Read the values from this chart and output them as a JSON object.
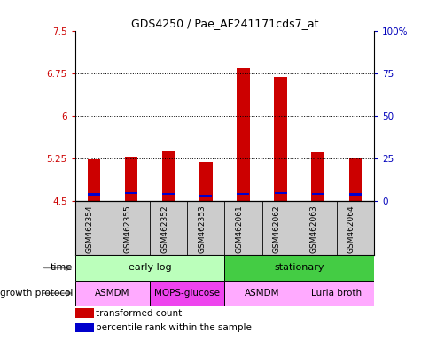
{
  "title": "GDS4250 / Pae_AF241171cds7_at",
  "samples": [
    "GSM462354",
    "GSM462355",
    "GSM462352",
    "GSM462353",
    "GSM462061",
    "GSM462062",
    "GSM462063",
    "GSM462064"
  ],
  "red_values": [
    5.22,
    5.28,
    5.38,
    5.18,
    6.84,
    6.68,
    5.36,
    5.26
  ],
  "blue_values": [
    4.61,
    4.63,
    4.62,
    4.59,
    4.62,
    4.63,
    4.62,
    4.61
  ],
  "bar_bottom": 4.5,
  "ylim_left": [
    4.5,
    7.5
  ],
  "ylim_right": [
    0,
    100
  ],
  "yticks_left": [
    4.5,
    5.25,
    6.0,
    6.75,
    7.5
  ],
  "yticks_right": [
    0,
    25,
    50,
    75,
    100
  ],
  "ytick_labels_left": [
    "4.5",
    "5.25",
    "6",
    "6.75",
    "7.5"
  ],
  "ytick_labels_right": [
    "0",
    "25",
    "50",
    "75",
    "100%"
  ],
  "hlines": [
    5.25,
    6.0,
    6.75
  ],
  "time_groups": [
    {
      "label": "early log",
      "start": 0,
      "end": 4,
      "color": "#bbffbb"
    },
    {
      "label": "stationary",
      "start": 4,
      "end": 8,
      "color": "#44cc44"
    }
  ],
  "protocol_groups": [
    {
      "label": "ASMDM",
      "start": 0,
      "end": 2,
      "color": "#ffaaff"
    },
    {
      "label": "MOPS-glucose",
      "start": 2,
      "end": 4,
      "color": "#ee44ee"
    },
    {
      "label": "ASMDM",
      "start": 4,
      "end": 6,
      "color": "#ffaaff"
    },
    {
      "label": "Luria broth",
      "start": 6,
      "end": 8,
      "color": "#ffaaff"
    }
  ],
  "bar_color": "#cc0000",
  "blue_color": "#0000cc",
  "bar_width": 0.35,
  "left_label_color": "#cc0000",
  "right_label_color": "#0000bb",
  "legend_red": "transformed count",
  "legend_blue": "percentile rank within the sample",
  "time_label": "time",
  "protocol_label": "growth protocol",
  "sample_bg_color": "#cccccc",
  "n_samples": 8
}
